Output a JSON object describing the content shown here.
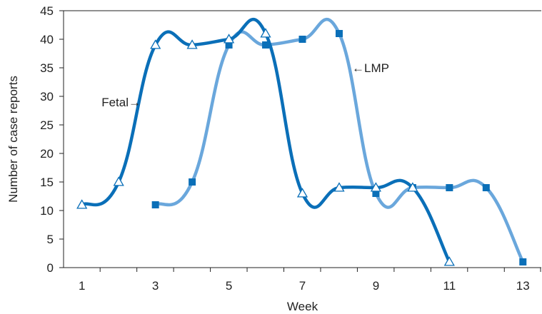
{
  "chart_data": {
    "type": "line",
    "title": "",
    "xlabel": "Week",
    "ylabel": "Number of case reports",
    "xlim": [
      0.5,
      13.5
    ],
    "ylim": [
      0,
      45
    ],
    "x_ticks": [
      1,
      3,
      5,
      7,
      9,
      11,
      13
    ],
    "y_ticks": [
      0,
      5,
      10,
      15,
      20,
      25,
      30,
      35,
      40,
      45
    ],
    "grid": false,
    "legend": "none",
    "series": [
      {
        "name": "Fetal",
        "color": "#0a6fb8",
        "marker": "open-triangle",
        "x": [
          1,
          2,
          3,
          4,
          5,
          6,
          7,
          8,
          9,
          10,
          11
        ],
        "y": [
          11,
          15,
          39,
          39,
          40,
          41,
          13,
          14,
          14,
          14,
          1
        ]
      },
      {
        "name": "LMP",
        "color": "#6aa7dc",
        "marker": "filled-square",
        "x": [
          3,
          4,
          5,
          6,
          7,
          8,
          9,
          10,
          11,
          12,
          13
        ],
        "y": [
          11,
          15,
          39,
          39,
          40,
          41,
          13,
          14,
          14,
          14,
          1
        ]
      }
    ],
    "annotations": [
      {
        "text": "Fetal→",
        "series": "Fetal"
      },
      {
        "text": "←LMP",
        "series": "LMP"
      }
    ]
  }
}
